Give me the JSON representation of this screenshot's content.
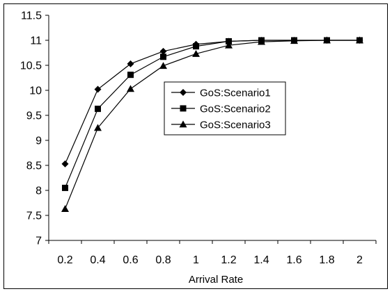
{
  "chart_data": {
    "type": "line",
    "title": "",
    "xlabel": "Arrival Rate",
    "ylabel": "",
    "x": [
      0.2,
      0.4,
      0.6,
      0.8,
      1,
      1.2,
      1.4,
      1.6,
      1.8,
      2
    ],
    "x_tick_labels": [
      "0.2",
      "0.4",
      "0.6",
      "0.8",
      "1",
      "1.2",
      "1.4",
      "1.6",
      "1.8",
      "2"
    ],
    "ylim": [
      7,
      11.5
    ],
    "y_ticks": [
      7,
      7.5,
      8,
      8.5,
      9,
      9.5,
      10,
      10.5,
      11,
      11.5
    ],
    "y_tick_labels": [
      "7",
      "7.5",
      "8",
      "8.5",
      "9",
      "9.5",
      "10",
      "10.5",
      "11",
      "11.5"
    ],
    "grid": false,
    "legend_position": "center-right",
    "series": [
      {
        "name": "GoS:Scenario1",
        "marker": "diamond",
        "values": [
          8.53,
          10.02,
          10.53,
          10.78,
          10.92,
          10.98,
          11.0,
          11.0,
          11.0,
          11.0
        ]
      },
      {
        "name": "GoS:Scenario2",
        "marker": "square",
        "values": [
          8.05,
          9.63,
          10.31,
          10.67,
          10.88,
          10.98,
          11.0,
          11.0,
          11.0,
          11.0
        ]
      },
      {
        "name": "GoS:Scenario3",
        "marker": "triangle",
        "values": [
          7.63,
          9.25,
          10.03,
          10.49,
          10.73,
          10.9,
          10.97,
          10.99,
          11.0,
          11.0
        ]
      }
    ],
    "colors": {
      "line": "#000000",
      "background": "#ffffff",
      "frame": "#000000"
    }
  }
}
